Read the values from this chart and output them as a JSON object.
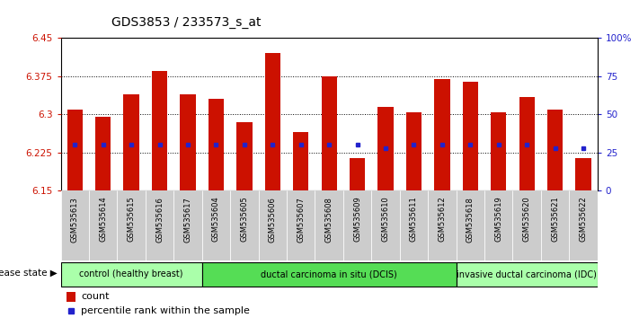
{
  "title": "GDS3853 / 233573_s_at",
  "samples": [
    "GSM535613",
    "GSM535614",
    "GSM535615",
    "GSM535616",
    "GSM535617",
    "GSM535604",
    "GSM535605",
    "GSM535606",
    "GSM535607",
    "GSM535608",
    "GSM535609",
    "GSM535610",
    "GSM535611",
    "GSM535612",
    "GSM535618",
    "GSM535619",
    "GSM535620",
    "GSM535621",
    "GSM535622"
  ],
  "count_values": [
    6.31,
    6.295,
    6.34,
    6.385,
    6.34,
    6.33,
    6.285,
    6.42,
    6.265,
    6.375,
    6.215,
    6.315,
    6.305,
    6.37,
    6.365,
    6.305,
    6.335,
    6.31,
    6.215
  ],
  "percentile_values": [
    30,
    30,
    30,
    30,
    30,
    30,
    30,
    30,
    30,
    30,
    30,
    28,
    30,
    30,
    30,
    30,
    30,
    28,
    28
  ],
  "ylim_left": [
    6.15,
    6.45
  ],
  "ylim_right": [
    0,
    100
  ],
  "yticks_left": [
    6.15,
    6.225,
    6.3,
    6.375,
    6.45
  ],
  "ytick_labels_left": [
    "6.15",
    "6.225",
    "6.3",
    "6.375",
    "6.45"
  ],
  "yticks_right": [
    0,
    25,
    50,
    75,
    100
  ],
  "ytick_labels_right": [
    "0",
    "25",
    "50",
    "75",
    "100%"
  ],
  "bar_color": "#cc1100",
  "percentile_color": "#2222cc",
  "bar_width": 0.55,
  "base_value": 6.15,
  "groups": [
    {
      "label": "control (healthy breast)",
      "start": 0,
      "end": 5,
      "color": "#aaffaa"
    },
    {
      "label": "ductal carcinoma in situ (DCIS)",
      "start": 5,
      "end": 14,
      "color": "#55dd55"
    },
    {
      "label": "invasive ductal carcinoma (IDC)",
      "start": 14,
      "end": 19,
      "color": "#aaffaa"
    }
  ],
  "disease_state_label": "disease state",
  "legend_count_label": "count",
  "legend_percentile_label": "percentile rank within the sample",
  "axis_label_color_left": "#cc1100",
  "axis_label_color_right": "#2222cc",
  "xtick_bg": "#cccccc"
}
